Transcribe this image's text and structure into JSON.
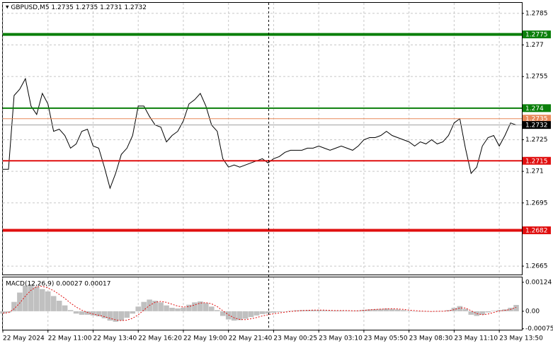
{
  "chart_data": [
    {
      "type": "line",
      "title": "GBPUSD,M5  1.2735 1.2735 1.2731 1.2732",
      "color": "#000000",
      "values": [
        1.2711,
        1.2711,
        1.2746,
        1.2749,
        1.2754,
        1.2741,
        1.2737,
        1.2747,
        1.2742,
        1.2729,
        1.273,
        1.2727,
        1.2721,
        1.2723,
        1.2729,
        1.273,
        1.2722,
        1.2721,
        1.2712,
        1.2702,
        1.2709,
        1.2718,
        1.2721,
        1.2727,
        1.2741,
        1.2741,
        1.2736,
        1.2732,
        1.2731,
        1.2724,
        1.2727,
        1.2729,
        1.2734,
        1.2742,
        1.2744,
        1.2747,
        1.2741,
        1.2732,
        1.2729,
        1.2716,
        1.2712,
        1.2713,
        1.2712,
        1.2713,
        1.2714,
        1.2715,
        1.2716,
        1.2714,
        1.2716,
        1.2717,
        1.2719,
        1.272,
        1.272,
        1.272,
        1.2721,
        1.2721,
        1.2722,
        1.2721,
        1.272,
        1.2721,
        1.2722,
        1.2721,
        1.272,
        1.2722,
        1.2725,
        1.2726,
        1.2726,
        1.2727,
        1.2729,
        1.2727,
        1.2726,
        1.2725,
        1.2724,
        1.2722,
        1.2724,
        1.2723,
        1.2725,
        1.2723,
        1.2724,
        1.2727,
        1.2733,
        1.2735,
        1.2721,
        1.2709,
        1.2712,
        1.2722,
        1.2726,
        1.2727,
        1.2722,
        1.2727,
        1.2733,
        1.2732
      ],
      "ylim": [
        1.2661,
        1.279
      ],
      "yticks": [
        1.2785,
        1.277,
        1.2755,
        1.2725,
        1.271,
        1.2695,
        1.2665
      ],
      "xlim": [
        0,
        92
      ],
      "xticks": [
        {
          "value": 0,
          "label": "22 May 2024"
        },
        {
          "value": 8,
          "label": "22 May 11:00"
        },
        {
          "value": 16,
          "label": "22 May 13:40"
        },
        {
          "value": 24,
          "label": "22 May 16:20"
        },
        {
          "value": 32,
          "label": "22 May 19:00"
        },
        {
          "value": 40,
          "label": "22 May 21:40"
        },
        {
          "value": 48,
          "label": "23 May 00:25"
        },
        {
          "value": 56,
          "label": "23 May 03:10"
        },
        {
          "value": 64,
          "label": "23 May 05:50"
        },
        {
          "value": 72,
          "label": "23 May 08:30"
        },
        {
          "value": 80,
          "label": "23 May 11:10"
        },
        {
          "value": 88,
          "label": "23 May 13:50"
        }
      ],
      "grid": true,
      "levels": [
        {
          "value": 1.2775,
          "color": "#0b7f0b"
        },
        {
          "value": 1.274,
          "color": "#0b7f0b"
        },
        {
          "value": 1.2715,
          "color": "#e01010"
        },
        {
          "value": 1.2682,
          "color": "#e01010"
        }
      ],
      "ask": {
        "value": 1.2735,
        "color": "#e8895a"
      },
      "bid": {
        "value": 1.2732,
        "color": "#000000"
      }
    },
    {
      "type": "bar",
      "title": "MACD(12,26,9) 0.00027 0.00017",
      "series": [
        {
          "color": "#c0c0c0",
          "values": [
            -0.0001,
            -5e-05,
            0.0004,
            0.0008,
            0.0011,
            0.00115,
            0.00105,
            0.00095,
            0.00085,
            0.00065,
            0.00045,
            0.00025,
            5e-05,
            -0.0001,
            -0.00015,
            -0.00015,
            -0.00018,
            -0.00022,
            -0.0003,
            -0.0004,
            -0.00045,
            -0.0004,
            -0.00028,
            -0.0001,
            0.0002,
            0.0004,
            0.0005,
            0.00045,
            0.00038,
            0.00025,
            0.00015,
            0.00012,
            0.00015,
            0.00028,
            0.00038,
            0.00042,
            0.00035,
            0.0002,
            5e-05,
            -0.0002,
            -0.00035,
            -0.0004,
            -0.00038,
            -0.00032,
            -0.00025,
            -0.00018,
            -0.00012,
            -0.0001,
            -6e-05,
            -3e-05,
            0,
            2e-05,
            4e-05,
            5e-05,
            5e-05,
            5e-05,
            5e-05,
            4e-05,
            3e-05,
            3e-05,
            3e-05,
            2e-05,
            2e-05,
            3e-05,
            6e-05,
            8e-05,
            9e-05,
            0.0001,
            0.00012,
            0.0001,
            8e-05,
            5e-05,
            2e-05,
            0,
            -1e-05,
            -1e-05,
            0,
            0,
            1e-05,
            5e-05,
            0.00015,
            0.00022,
            0.0001,
            -0.00015,
            -0.0002,
            -0.00015,
            -5e-05,
            2e-05,
            5e-05,
            8e-05,
            0.00015,
            0.00027
          ]
        },
        {
          "color": "#e01010",
          "values": [
            -8e-05,
            -6e-05,
            0.0001,
            0.00035,
            0.00065,
            0.0009,
            0.00105,
            0.00107,
            0.001,
            0.00088,
            0.00072,
            0.00055,
            0.00035,
            0.00018,
            5e-05,
            -5e-05,
            -0.00012,
            -0.00017,
            -0.00023,
            -0.0003,
            -0.00037,
            -0.0004,
            -0.00038,
            -0.0003,
            -0.00015,
            5e-05,
            0.00025,
            0.00038,
            0.00042,
            0.00038,
            0.0003,
            0.00022,
            0.00018,
            0.0002,
            0.00027,
            0.00035,
            0.00037,
            0.00032,
            0.0002,
            2e-05,
            -0.00015,
            -0.00028,
            -0.00035,
            -0.00036,
            -0.00032,
            -0.00027,
            -0.0002,
            -0.00015,
            -0.00011,
            -7e-05,
            -4e-05,
            -1e-05,
            1e-05,
            3e-05,
            4e-05,
            5e-05,
            5e-05,
            5e-05,
            4e-05,
            3e-05,
            3e-05,
            3e-05,
            2e-05,
            2e-05,
            4e-05,
            6e-05,
            8e-05,
            9e-05,
            0.0001,
            0.00011,
            0.0001,
            8e-05,
            5e-05,
            3e-05,
            1e-05,
            0,
            -1e-05,
            0,
            0,
            2e-05,
            7e-05,
            0.00014,
            0.00014,
            2e-05,
            -0.0001,
            -0.00015,
            -0.00012,
            -5e-05,
            1e-05,
            4e-05,
            8e-05,
            0.00017
          ]
        }
      ],
      "ylim": [
        -0.00079,
        0.00145
      ],
      "yticks": [
        0.00124,
        {
          "value": 0,
          "label": "0.00"
        },
        -0.00075
      ]
    }
  ]
}
